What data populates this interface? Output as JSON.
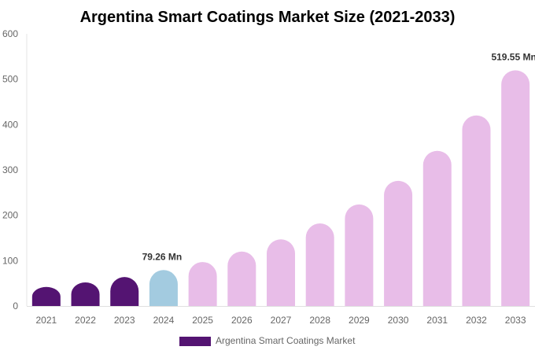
{
  "chart_data": {
    "type": "bar",
    "title": "Argentina Smart Coatings Market Size (2021-2033)",
    "categories": [
      "2021",
      "2022",
      "2023",
      "2024",
      "2025",
      "2026",
      "2027",
      "2028",
      "2029",
      "2030",
      "2031",
      "2032",
      "2033"
    ],
    "series": [
      {
        "name": "Argentina Smart Coatings Market",
        "values": [
          42,
          52,
          64,
          79.26,
          97,
          120,
          147,
          182,
          224,
          276,
          342,
          420,
          519.55
        ]
      }
    ],
    "bar_colors": [
      "#541472",
      "#541472",
      "#541472",
      "#a3cbe0",
      "#e8bde8",
      "#e8bde8",
      "#e8bde8",
      "#e8bde8",
      "#e8bde8",
      "#e8bde8",
      "#e8bde8",
      "#e8bde8",
      "#e8bde8"
    ],
    "legend_color": "#541472",
    "data_labels": {
      "3": "79.26 Mn",
      "12": "519.55 Mn"
    },
    "yticks": [
      "0",
      "100",
      "200",
      "300",
      "400",
      "500",
      "600"
    ],
    "ylim": [
      0,
      600
    ],
    "xlabel": "",
    "ylabel": "",
    "grid": false,
    "legend_position": "bottom"
  }
}
